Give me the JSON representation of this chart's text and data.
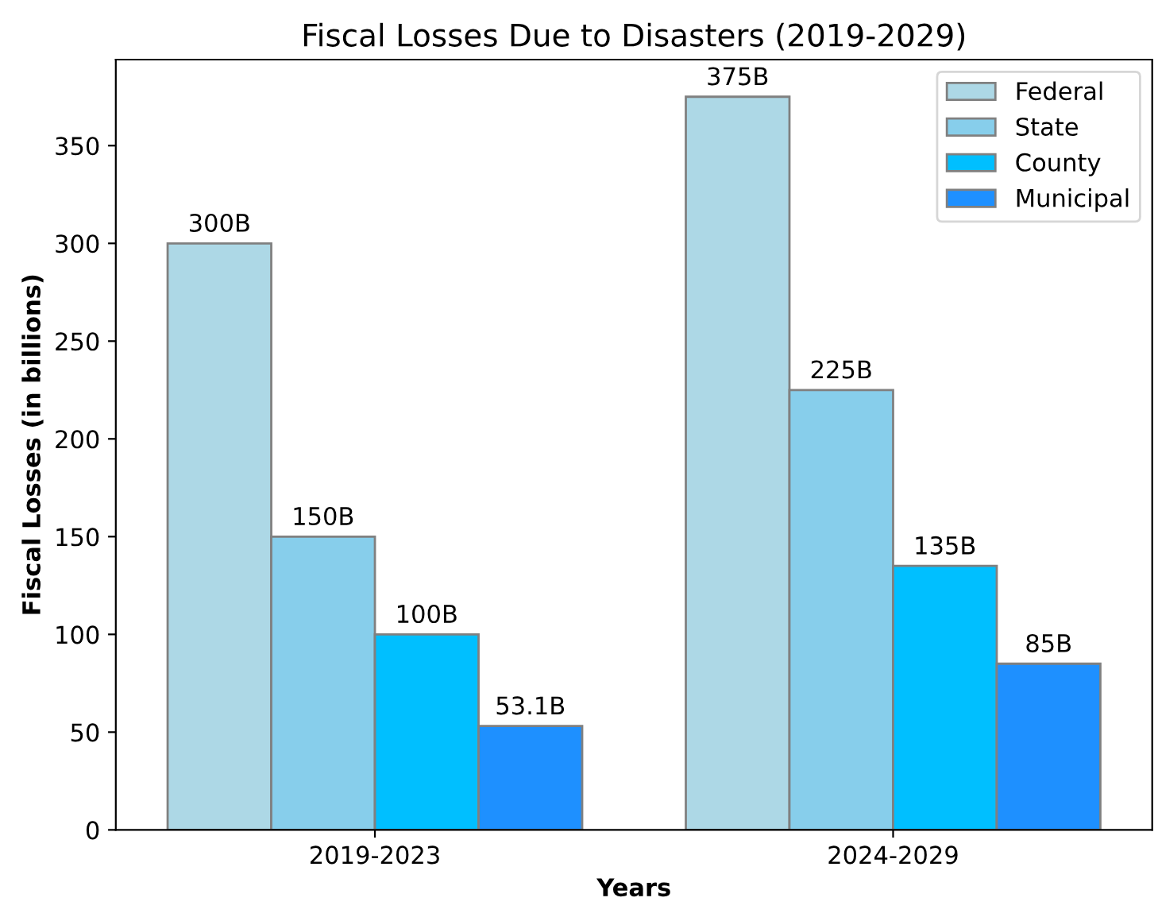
{
  "chart_data": {
    "type": "bar",
    "title": "Fiscal Losses Due to Disasters (2019-2029)",
    "xlabel": "Years",
    "ylabel": "Fiscal Losses (in billions)",
    "categories": [
      "2019-2023",
      "2024-2029"
    ],
    "series": [
      {
        "name": "Federal",
        "color": "#add8e6",
        "values": [
          300,
          375
        ],
        "value_labels": [
          "300B",
          "375B"
        ]
      },
      {
        "name": "State",
        "color": "#87ceeb",
        "values": [
          150,
          225
        ],
        "value_labels": [
          "150B",
          "225B"
        ]
      },
      {
        "name": "County",
        "color": "#00bfff",
        "values": [
          100,
          135
        ],
        "value_labels": [
          "100B",
          "135B"
        ]
      },
      {
        "name": "Municipal",
        "color": "#1e90ff",
        "values": [
          53.1,
          85
        ],
        "value_labels": [
          "53.1B",
          "85B"
        ]
      }
    ],
    "ylim": [
      0,
      394
    ],
    "yticks": [
      0,
      50,
      100,
      150,
      200,
      250,
      300,
      350
    ],
    "legend": "top right",
    "grid": false
  }
}
